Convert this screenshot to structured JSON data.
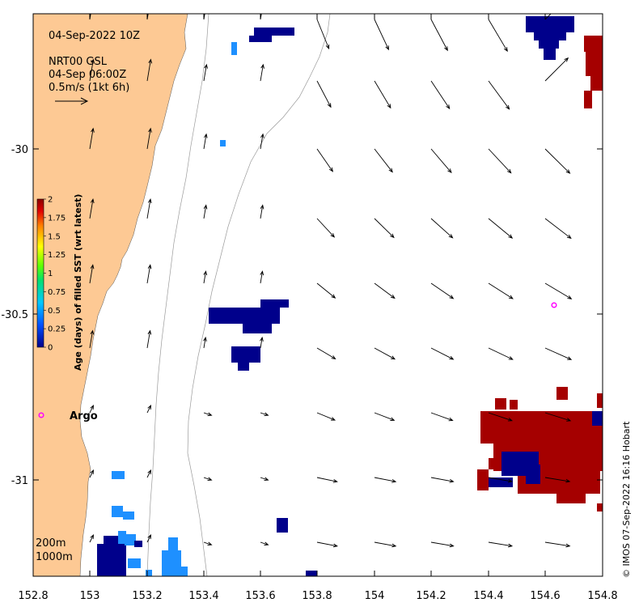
{
  "title": {
    "datetime": "04-Sep-2022 10Z",
    "product": "NRT00 GSL",
    "product_time": "04-Sep 06:00Z",
    "scale_arrow_label": "0.5m/s (1kt 6h)"
  },
  "axes": {
    "x_ticks": [
      "152.8",
      "153",
      "153.2",
      "153.4",
      "153.6",
      "153.8",
      "154",
      "154.2",
      "154.4",
      "154.6",
      "154.8"
    ],
    "y_ticks": [
      "-30",
      "-30.5",
      "-31"
    ],
    "x_range": [
      152.8,
      154.8
    ],
    "y_range": [
      -31.3,
      -29.58
    ]
  },
  "colorbar": {
    "label": "Age (days) of filled SST (wrt latest)",
    "ticks": [
      "0",
      "0.25",
      "0.5",
      "0.75",
      "1",
      "1.25",
      "1.5",
      "1.75",
      "2"
    ],
    "range": [
      0,
      2
    ]
  },
  "markers": {
    "argo_label": "Argo",
    "argo_color": "#ff00ff"
  },
  "contours": {
    "label_200": "200m",
    "label_1000": "1000m"
  },
  "credit": "© IMOS 07-Sep-2022 16:16 Hobart",
  "colors": {
    "land": "#fdc994",
    "age_0": "#00008b",
    "age_0_5": "#1e90ff",
    "age_2": "#a50000"
  },
  "chart_data": {
    "type": "map",
    "x_label": "",
    "y_label": "",
    "xlim": [
      152.8,
      154.8
    ],
    "ylim": [
      -31.3,
      -29.58
    ],
    "argo_floats": [
      {
        "lon": 152.83,
        "lat": -30.81,
        "label": "Argo"
      },
      {
        "lon": 154.63,
        "lat": -30.47,
        "label": ""
      }
    ]
  }
}
